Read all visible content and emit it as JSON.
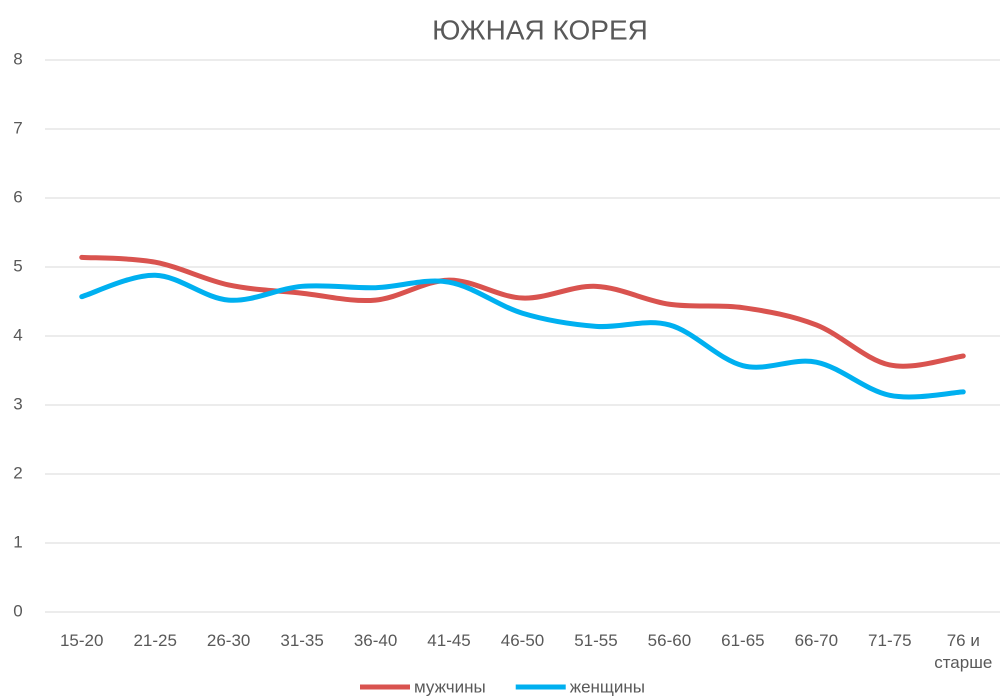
{
  "chart_data": {
    "type": "line",
    "title": "ЮЖНАЯ КОРЕЯ",
    "categories": [
      "15-20",
      "21-25",
      "26-30",
      "31-35",
      "36-40",
      "41-45",
      "46-50",
      "51-55",
      "56-60",
      "61-65",
      "66-70",
      "71-75",
      "76 и старше"
    ],
    "series": [
      {
        "name": "мужчины",
        "color": "#d9534f",
        "values": [
          5.14,
          5.07,
          4.74,
          4.62,
          4.52,
          4.81,
          4.55,
          4.72,
          4.46,
          4.41,
          4.16,
          3.58,
          3.71
        ]
      },
      {
        "name": "женщины",
        "color": "#00b0f0",
        "values": [
          4.57,
          4.88,
          4.52,
          4.72,
          4.7,
          4.78,
          4.33,
          4.14,
          4.16,
          3.57,
          3.62,
          3.14,
          3.19
        ]
      }
    ],
    "ylim": [
      0,
      8
    ],
    "yticks": [
      0,
      1,
      2,
      3,
      4,
      5,
      6,
      7,
      8
    ],
    "grid": true,
    "legend": "bottom",
    "smooth": true
  }
}
